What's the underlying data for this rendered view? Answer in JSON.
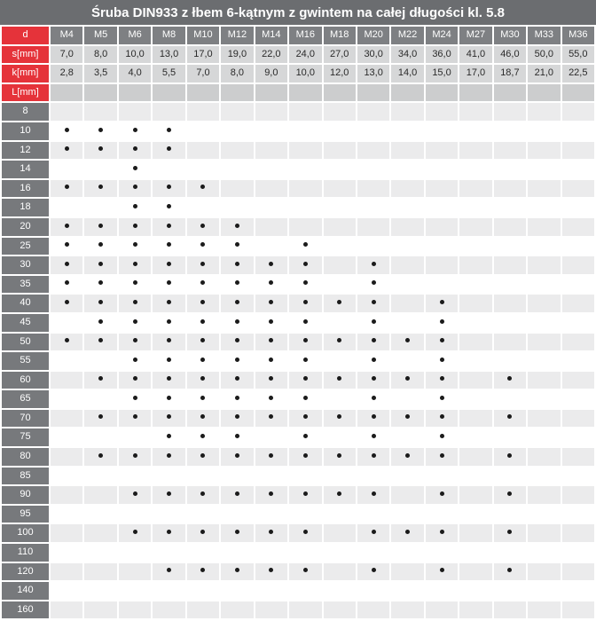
{
  "title": "Śruba DIN933 z łbem 6-kątnym z gwintem na całej długości kl. 5.8",
  "colors": {
    "title_bg": "#6b6d70",
    "accent_red": "#e5333a",
    "col_header_bg": "#7e8083",
    "row_label_bg": "#77797c",
    "sk_cell_bg": "#d6d7d8",
    "lmm_cell_bg": "#cccdce",
    "row_gray_bg": "#ebebec",
    "row_white_bg": "#ffffff",
    "dot_color": "#1b1b1b"
  },
  "table": {
    "corner_label": "d",
    "s_label": "s[mm]",
    "k_label": "k[mm]",
    "length_label": "L[mm]",
    "diameters": [
      "M4",
      "M5",
      "M6",
      "M8",
      "M10",
      "M12",
      "M14",
      "M16",
      "M18",
      "M20",
      "M22",
      "M24",
      "M27",
      "M30",
      "M33",
      "M36"
    ],
    "s_mm": [
      "7,0",
      "8,0",
      "10,0",
      "13,0",
      "17,0",
      "19,0",
      "22,0",
      "24,0",
      "27,0",
      "30,0",
      "34,0",
      "36,0",
      "41,0",
      "46,0",
      "50,0",
      "55,0"
    ],
    "k_mm": [
      "2,8",
      "3,5",
      "4,0",
      "5,5",
      "7,0",
      "8,0",
      "9,0",
      "10,0",
      "12,0",
      "13,0",
      "14,0",
      "15,0",
      "17,0",
      "18,7",
      "21,0",
      "22,5"
    ],
    "length_rows": [
      {
        "L": "8",
        "dots": [
          0,
          0,
          0,
          0,
          0,
          0,
          0,
          0,
          0,
          0,
          0,
          0,
          0,
          0,
          0,
          0
        ]
      },
      {
        "L": "10",
        "dots": [
          1,
          1,
          1,
          1,
          0,
          0,
          0,
          0,
          0,
          0,
          0,
          0,
          0,
          0,
          0,
          0
        ]
      },
      {
        "L": "12",
        "dots": [
          1,
          1,
          1,
          1,
          0,
          0,
          0,
          0,
          0,
          0,
          0,
          0,
          0,
          0,
          0,
          0
        ]
      },
      {
        "L": "14",
        "dots": [
          0,
          0,
          1,
          0,
          0,
          0,
          0,
          0,
          0,
          0,
          0,
          0,
          0,
          0,
          0,
          0
        ]
      },
      {
        "L": "16",
        "dots": [
          1,
          1,
          1,
          1,
          1,
          0,
          0,
          0,
          0,
          0,
          0,
          0,
          0,
          0,
          0,
          0
        ]
      },
      {
        "L": "18",
        "dots": [
          0,
          0,
          1,
          1,
          0,
          0,
          0,
          0,
          0,
          0,
          0,
          0,
          0,
          0,
          0,
          0
        ]
      },
      {
        "L": "20",
        "dots": [
          1,
          1,
          1,
          1,
          1,
          1,
          0,
          0,
          0,
          0,
          0,
          0,
          0,
          0,
          0,
          0
        ]
      },
      {
        "L": "25",
        "dots": [
          1,
          1,
          1,
          1,
          1,
          1,
          0,
          1,
          0,
          0,
          0,
          0,
          0,
          0,
          0,
          0
        ]
      },
      {
        "L": "30",
        "dots": [
          1,
          1,
          1,
          1,
          1,
          1,
          1,
          1,
          0,
          1,
          0,
          0,
          0,
          0,
          0,
          0
        ]
      },
      {
        "L": "35",
        "dots": [
          1,
          1,
          1,
          1,
          1,
          1,
          1,
          1,
          0,
          1,
          0,
          0,
          0,
          0,
          0,
          0
        ]
      },
      {
        "L": "40",
        "dots": [
          1,
          1,
          1,
          1,
          1,
          1,
          1,
          1,
          1,
          1,
          0,
          1,
          0,
          0,
          0,
          0
        ]
      },
      {
        "L": "45",
        "dots": [
          0,
          1,
          1,
          1,
          1,
          1,
          1,
          1,
          0,
          1,
          0,
          1,
          0,
          0,
          0,
          0
        ]
      },
      {
        "L": "50",
        "dots": [
          1,
          1,
          1,
          1,
          1,
          1,
          1,
          1,
          1,
          1,
          1,
          1,
          0,
          0,
          0,
          0
        ]
      },
      {
        "L": "55",
        "dots": [
          0,
          0,
          1,
          1,
          1,
          1,
          1,
          1,
          0,
          1,
          0,
          1,
          0,
          0,
          0,
          0
        ]
      },
      {
        "L": "60",
        "dots": [
          0,
          1,
          1,
          1,
          1,
          1,
          1,
          1,
          1,
          1,
          1,
          1,
          0,
          1,
          0,
          0
        ]
      },
      {
        "L": "65",
        "dots": [
          0,
          0,
          1,
          1,
          1,
          1,
          1,
          1,
          0,
          1,
          0,
          1,
          0,
          0,
          0,
          0
        ]
      },
      {
        "L": "70",
        "dots": [
          0,
          1,
          1,
          1,
          1,
          1,
          1,
          1,
          1,
          1,
          1,
          1,
          0,
          1,
          0,
          0
        ]
      },
      {
        "L": "75",
        "dots": [
          0,
          0,
          0,
          1,
          1,
          1,
          0,
          1,
          0,
          1,
          0,
          1,
          0,
          0,
          0,
          0
        ]
      },
      {
        "L": "80",
        "dots": [
          0,
          1,
          1,
          1,
          1,
          1,
          1,
          1,
          1,
          1,
          1,
          1,
          0,
          1,
          0,
          0
        ]
      },
      {
        "L": "85",
        "dots": [
          0,
          0,
          0,
          0,
          0,
          0,
          0,
          0,
          0,
          0,
          0,
          0,
          0,
          0,
          0,
          0
        ]
      },
      {
        "L": "90",
        "dots": [
          0,
          0,
          1,
          1,
          1,
          1,
          1,
          1,
          1,
          1,
          0,
          1,
          0,
          1,
          0,
          0
        ]
      },
      {
        "L": "95",
        "dots": [
          0,
          0,
          0,
          0,
          0,
          0,
          0,
          0,
          0,
          0,
          0,
          0,
          0,
          0,
          0,
          0
        ]
      },
      {
        "L": "100",
        "dots": [
          0,
          0,
          1,
          1,
          1,
          1,
          1,
          1,
          0,
          1,
          1,
          1,
          0,
          1,
          0,
          0
        ]
      },
      {
        "L": "110",
        "dots": [
          0,
          0,
          0,
          0,
          0,
          0,
          0,
          0,
          0,
          0,
          0,
          0,
          0,
          0,
          0,
          0
        ]
      },
      {
        "L": "120",
        "dots": [
          0,
          0,
          0,
          1,
          1,
          1,
          1,
          1,
          0,
          1,
          0,
          1,
          0,
          1,
          0,
          0
        ]
      },
      {
        "L": "140",
        "dots": [
          0,
          0,
          0,
          0,
          0,
          0,
          0,
          0,
          0,
          0,
          0,
          0,
          0,
          0,
          0,
          0
        ]
      },
      {
        "L": "160",
        "dots": [
          0,
          0,
          0,
          0,
          0,
          0,
          0,
          0,
          0,
          0,
          0,
          0,
          0,
          0,
          0,
          0
        ]
      }
    ]
  }
}
